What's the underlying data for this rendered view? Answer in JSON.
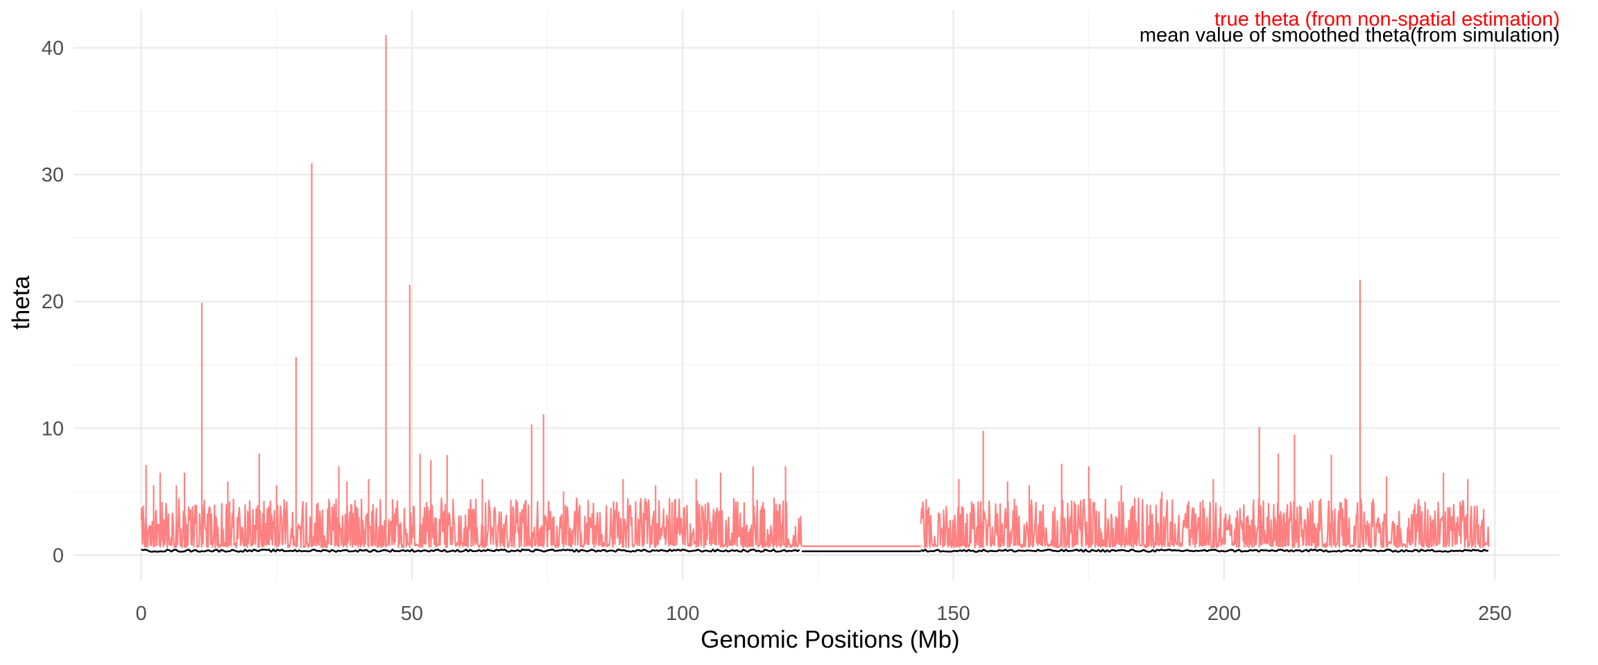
{
  "chart_data": {
    "type": "line",
    "title": "",
    "xlabel": "Genomic Positions (Mb)",
    "ylabel": "theta",
    "xlim": [
      -12.5,
      262
    ],
    "ylim": [
      -2,
      43
    ],
    "x_ticks": [
      0,
      50,
      100,
      150,
      200,
      250
    ],
    "y_ticks": [
      0,
      10,
      20,
      30,
      40
    ],
    "grid": true,
    "legend_position": "top-right",
    "colors": {
      "true": "#ff0000",
      "smoothed": "#000000",
      "true_line": "#ff8080"
    },
    "series": [
      {
        "name": "true theta (from non-spatial estimation)",
        "color": "#ff8080",
        "baseline": 0.6,
        "typical_max": 4.5,
        "segments": [
          [
            0,
            122
          ],
          [
            144,
            249
          ]
        ],
        "flat_segments": [
          [
            122,
            144,
            0.7
          ]
        ],
        "peaks": [
          [
            0.9,
            7.1
          ],
          [
            2.3,
            5.5
          ],
          [
            3.5,
            6.5
          ],
          [
            6.5,
            5.5
          ],
          [
            8.0,
            6.5
          ],
          [
            11.2,
            19.9
          ],
          [
            16.0,
            5.8
          ],
          [
            21.8,
            8.0
          ],
          [
            25.0,
            5.5
          ],
          [
            28.6,
            15.6
          ],
          [
            31.5,
            30.9
          ],
          [
            36.5,
            7.0
          ],
          [
            38.0,
            5.8
          ],
          [
            42.0,
            6.0
          ],
          [
            45.2,
            41.0
          ],
          [
            49.6,
            21.3
          ],
          [
            51.5,
            8.0
          ],
          [
            53.5,
            7.5
          ],
          [
            56.5,
            7.9
          ],
          [
            63.0,
            6.0
          ],
          [
            72.1,
            10.3
          ],
          [
            74.3,
            11.1
          ],
          [
            78.0,
            5.0
          ],
          [
            89.0,
            6.0
          ],
          [
            95.0,
            5.5
          ],
          [
            102.5,
            6.0
          ],
          [
            107.0,
            6.5
          ],
          [
            113.0,
            7.0
          ],
          [
            119.0,
            7.0
          ],
          [
            151.0,
            6.0
          ],
          [
            155.5,
            9.8
          ],
          [
            160.0,
            5.8
          ],
          [
            164.0,
            5.5
          ],
          [
            170.0,
            7.2
          ],
          [
            175.0,
            7.0
          ],
          [
            181.0,
            5.5
          ],
          [
            188.5,
            5.0
          ],
          [
            198.0,
            6.0
          ],
          [
            206.5,
            10.1
          ],
          [
            210.0,
            8.0
          ],
          [
            213.0,
            9.5
          ],
          [
            219.8,
            7.9
          ],
          [
            225.1,
            21.7
          ],
          [
            230.0,
            6.2
          ],
          [
            240.5,
            6.5
          ],
          [
            245.0,
            6.0
          ]
        ]
      },
      {
        "name": "mean value of smoothed theta(from simulation)",
        "color": "#000000",
        "baseline": 0.35,
        "segments": [
          [
            0,
            122
          ],
          [
            144,
            249
          ]
        ],
        "flat_segments": [
          [
            122,
            144,
            0.3
          ]
        ]
      }
    ]
  }
}
